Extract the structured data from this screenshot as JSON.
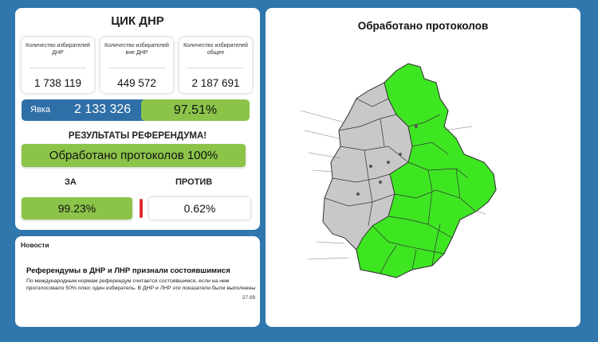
{
  "header": {
    "title": "ЦИК ДНР"
  },
  "stats": [
    {
      "label": "Количество избирателей ДНР",
      "value": "1 738 119"
    },
    {
      "label": "Количество избирателей вне ДНР",
      "value": "449 572"
    },
    {
      "label": "Количество избирателей общее",
      "value": "2 187 691"
    }
  ],
  "turnout": {
    "label": "Явка",
    "value": "2 133 326",
    "percent": "97.51%"
  },
  "results": {
    "title": "РЕЗУЛЬТАТЫ РЕФЕРЕНДУМА!",
    "processed": "Обработано протоколов 100%",
    "for_label": "ЗА",
    "against_label": "ПРОТИВ",
    "for_value": "99.23%",
    "against_value": "0.62%"
  },
  "news": {
    "header": "Новости",
    "headline": "Референдумы в ДНР и ЛНР признали состоявшимися",
    "body": "По международным нормам референдум считается состоявшимся, если на нем проголосовало 50% плюс один избиратель. В ДНР и ЛНР эти показатели были выполнены",
    "date": "27.09"
  },
  "map": {
    "title": "Обработано протоколов",
    "colors": {
      "processed": "#3ee622",
      "other": "#c8c8c8",
      "border": "#333333",
      "background": "#ffffff"
    }
  },
  "colors": {
    "page_bg": "#2f77ad",
    "accent_green": "#8cc44a",
    "accent_blue": "#2f6fa8",
    "against_marker": "#e02b2b"
  }
}
